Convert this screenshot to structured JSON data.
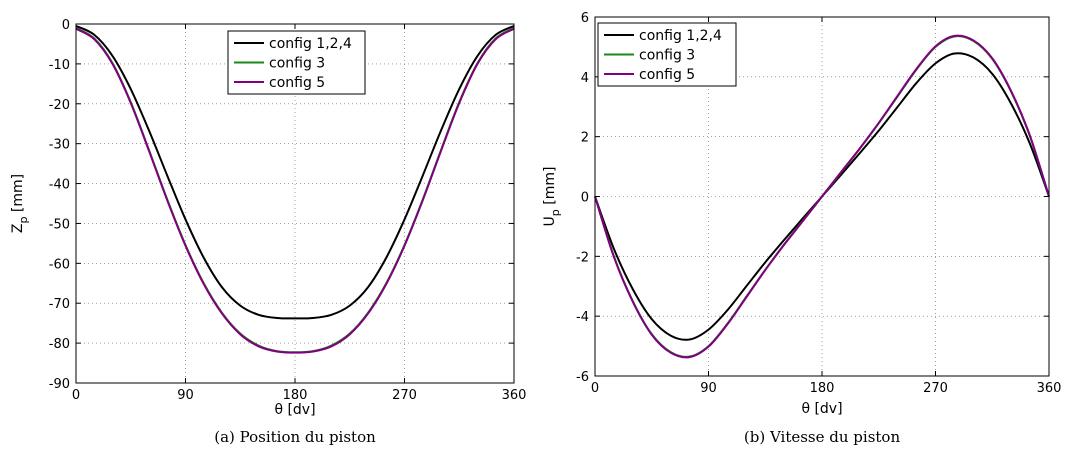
{
  "chart_data": [
    {
      "type": "line",
      "caption": "(a) Position du piston",
      "xlabel": "θ [dv]",
      "ylabel_main": "Z",
      "ylabel_sub": "p",
      "ylabel_unit": " [mm]",
      "xlim": [
        0,
        360
      ],
      "ylim": [
        -90,
        0
      ],
      "xticks": [
        0,
        90,
        180,
        270,
        360
      ],
      "yticks": [
        0,
        -10,
        -20,
        -30,
        -40,
        -50,
        -60,
        -70,
        -80,
        -90
      ],
      "grid": true,
      "legend_position": "top-center",
      "series": [
        {
          "name": "config 1,2,4",
          "color": "#000000",
          "x": [
            0,
            15,
            30,
            45,
            60,
            75,
            90,
            105,
            120,
            135,
            150,
            165,
            180,
            195,
            210,
            225,
            240,
            255,
            270,
            285,
            300,
            315,
            330,
            345,
            360
          ],
          "y": [
            -0.5,
            -2.7,
            -8.0,
            -16.3,
            -26.7,
            -38.0,
            -49.0,
            -58.6,
            -66.0,
            -70.6,
            -72.9,
            -73.7,
            -73.8,
            -73.7,
            -72.9,
            -70.6,
            -66.0,
            -58.6,
            -49.0,
            -38.0,
            -26.7,
            -16.3,
            -8.0,
            -2.7,
            -0.5
          ]
        },
        {
          "name": "config 3",
          "color": "#1a8a1a",
          "x": [
            0,
            15,
            30,
            45,
            60,
            75,
            90,
            105,
            120,
            135,
            150,
            165,
            180,
            195,
            210,
            225,
            240,
            255,
            270,
            285,
            300,
            315,
            330,
            345,
            360
          ],
          "y": [
            -1.0,
            -3.6,
            -9.8,
            -19.6,
            -31.6,
            -44.0,
            -55.4,
            -65.0,
            -72.4,
            -77.6,
            -80.6,
            -82.0,
            -82.3,
            -82.0,
            -80.6,
            -77.6,
            -72.4,
            -65.0,
            -55.4,
            -44.0,
            -31.6,
            -19.6,
            -9.8,
            -3.6,
            -1.0
          ]
        },
        {
          "name": "config 5",
          "color": "#800080",
          "x": [
            0,
            15,
            30,
            45,
            60,
            75,
            90,
            105,
            120,
            135,
            150,
            165,
            180,
            195,
            210,
            225,
            240,
            255,
            270,
            285,
            300,
            315,
            330,
            345,
            360
          ],
          "y": [
            -1.2,
            -3.8,
            -10.0,
            -19.8,
            -31.8,
            -44.2,
            -55.6,
            -65.2,
            -72.6,
            -77.8,
            -80.8,
            -82.1,
            -82.4,
            -82.1,
            -80.8,
            -77.8,
            -72.6,
            -65.2,
            -55.6,
            -44.2,
            -31.8,
            -19.8,
            -10.0,
            -3.8,
            -1.2
          ]
        }
      ]
    },
    {
      "type": "line",
      "caption": "(b) Vitesse du piston",
      "xlabel": "θ [dv]",
      "ylabel_main": "U",
      "ylabel_sub": "p",
      "ylabel_unit": " [mm]",
      "xlim": [
        0,
        360
      ],
      "ylim": [
        -6,
        6
      ],
      "xticks": [
        0,
        90,
        180,
        270,
        360
      ],
      "yticks": [
        6,
        4,
        2,
        0,
        -2,
        -4,
        -6
      ],
      "grid": true,
      "legend_position": "top-left",
      "series": [
        {
          "name": "config 1,2,4",
          "color": "#000000",
          "x": [
            0,
            15,
            30,
            45,
            60,
            75,
            90,
            105,
            120,
            135,
            150,
            165,
            180,
            195,
            210,
            225,
            240,
            255,
            270,
            285,
            300,
            315,
            330,
            345,
            360
          ],
          "y": [
            0.0,
            -1.75,
            -3.1,
            -4.1,
            -4.65,
            -4.78,
            -4.45,
            -3.8,
            -3.0,
            -2.2,
            -1.45,
            -0.72,
            0.0,
            0.72,
            1.45,
            2.2,
            3.0,
            3.8,
            4.45,
            4.78,
            4.65,
            4.1,
            3.1,
            1.75,
            0.0
          ]
        },
        {
          "name": "config 3",
          "color": "#1a8a1a",
          "x": [
            0,
            15,
            30,
            45,
            60,
            75,
            90,
            105,
            120,
            135,
            150,
            165,
            180,
            195,
            210,
            225,
            240,
            255,
            270,
            285,
            300,
            315,
            330,
            345,
            360
          ],
          "y": [
            0.0,
            -2.0,
            -3.5,
            -4.6,
            -5.2,
            -5.35,
            -5.0,
            -4.25,
            -3.35,
            -2.45,
            -1.6,
            -0.8,
            0.0,
            0.8,
            1.6,
            2.45,
            3.35,
            4.25,
            5.0,
            5.35,
            5.2,
            4.6,
            3.5,
            2.0,
            0.0
          ]
        },
        {
          "name": "config 5",
          "color": "#800080",
          "x": [
            0,
            15,
            30,
            45,
            60,
            75,
            90,
            105,
            120,
            135,
            150,
            165,
            180,
            195,
            210,
            225,
            240,
            255,
            270,
            285,
            300,
            315,
            330,
            345,
            360
          ],
          "y": [
            0.0,
            -2.02,
            -3.52,
            -4.62,
            -5.22,
            -5.37,
            -5.02,
            -4.27,
            -3.37,
            -2.46,
            -1.61,
            -0.81,
            0.0,
            0.81,
            1.61,
            2.46,
            3.37,
            4.27,
            5.02,
            5.37,
            5.22,
            4.62,
            3.52,
            2.02,
            0.0
          ]
        }
      ]
    }
  ]
}
